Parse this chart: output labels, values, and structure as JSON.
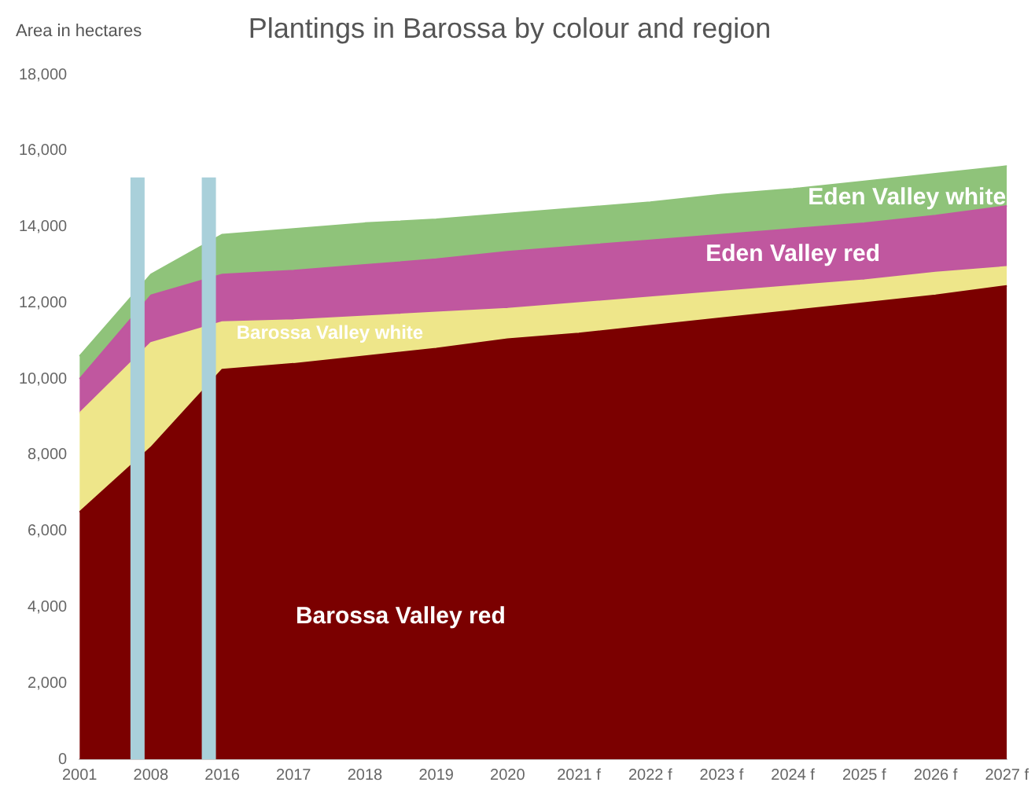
{
  "chart_data": {
    "type": "area",
    "title": "Plantings in Barossa by colour and region",
    "ylabel": "Area in hectares",
    "categories": [
      "2001",
      "2008",
      "2016",
      "2017",
      "2018",
      "2019",
      "2020",
      "2021 f",
      "2022 f",
      "2023 f",
      "2024 f",
      "2025 f",
      "2026 f",
      "2027 f"
    ],
    "stacked": true,
    "series": [
      {
        "name": "Barossa Valley red",
        "color": "#7b0000",
        "values": [
          6500,
          8200,
          10250,
          10400,
          10600,
          10800,
          11050,
          11200,
          11400,
          11600,
          11800,
          12000,
          12200,
          12450
        ]
      },
      {
        "name": "Barossa Valley white",
        "color": "#eee68a",
        "values": [
          2600,
          2750,
          1250,
          1150,
          1050,
          950,
          800,
          800,
          750,
          700,
          650,
          600,
          600,
          500
        ]
      },
      {
        "name": "Eden Valley red",
        "color": "#c0579f",
        "values": [
          900,
          1250,
          1250,
          1300,
          1350,
          1400,
          1500,
          1500,
          1500,
          1500,
          1500,
          1500,
          1500,
          1600
        ]
      },
      {
        "name": "Eden Valley white",
        "color": "#8fc37a",
        "values": [
          600,
          550,
          1050,
          1100,
          1100,
          1050,
          1000,
          1000,
          1000,
          1050,
          1050,
          1100,
          1100,
          1050
        ]
      }
    ],
    "ylim": [
      0,
      18000
    ],
    "yticks": [
      0,
      {
        "value": 2000,
        "label": "2,000"
      },
      {
        "value": 4000,
        "label": "4,000"
      },
      {
        "value": 6000,
        "label": "6,000"
      },
      {
        "value": 8000,
        "label": "8,000"
      },
      {
        "value": 10000,
        "label": "10,000"
      },
      {
        "value": 12000,
        "label": "12,000"
      },
      {
        "value": 14000,
        "label": "14,000"
      },
      {
        "value": 16000,
        "label": "16,000"
      },
      {
        "value": 18000,
        "label": "18,000"
      }
    ],
    "ref_lines": [
      {
        "axis": "x",
        "value": "2008",
        "color": "#a9d0da"
      },
      {
        "axis": "x",
        "value": "2016",
        "color": "#a9d0da"
      }
    ],
    "grid": false,
    "legend": false
  }
}
